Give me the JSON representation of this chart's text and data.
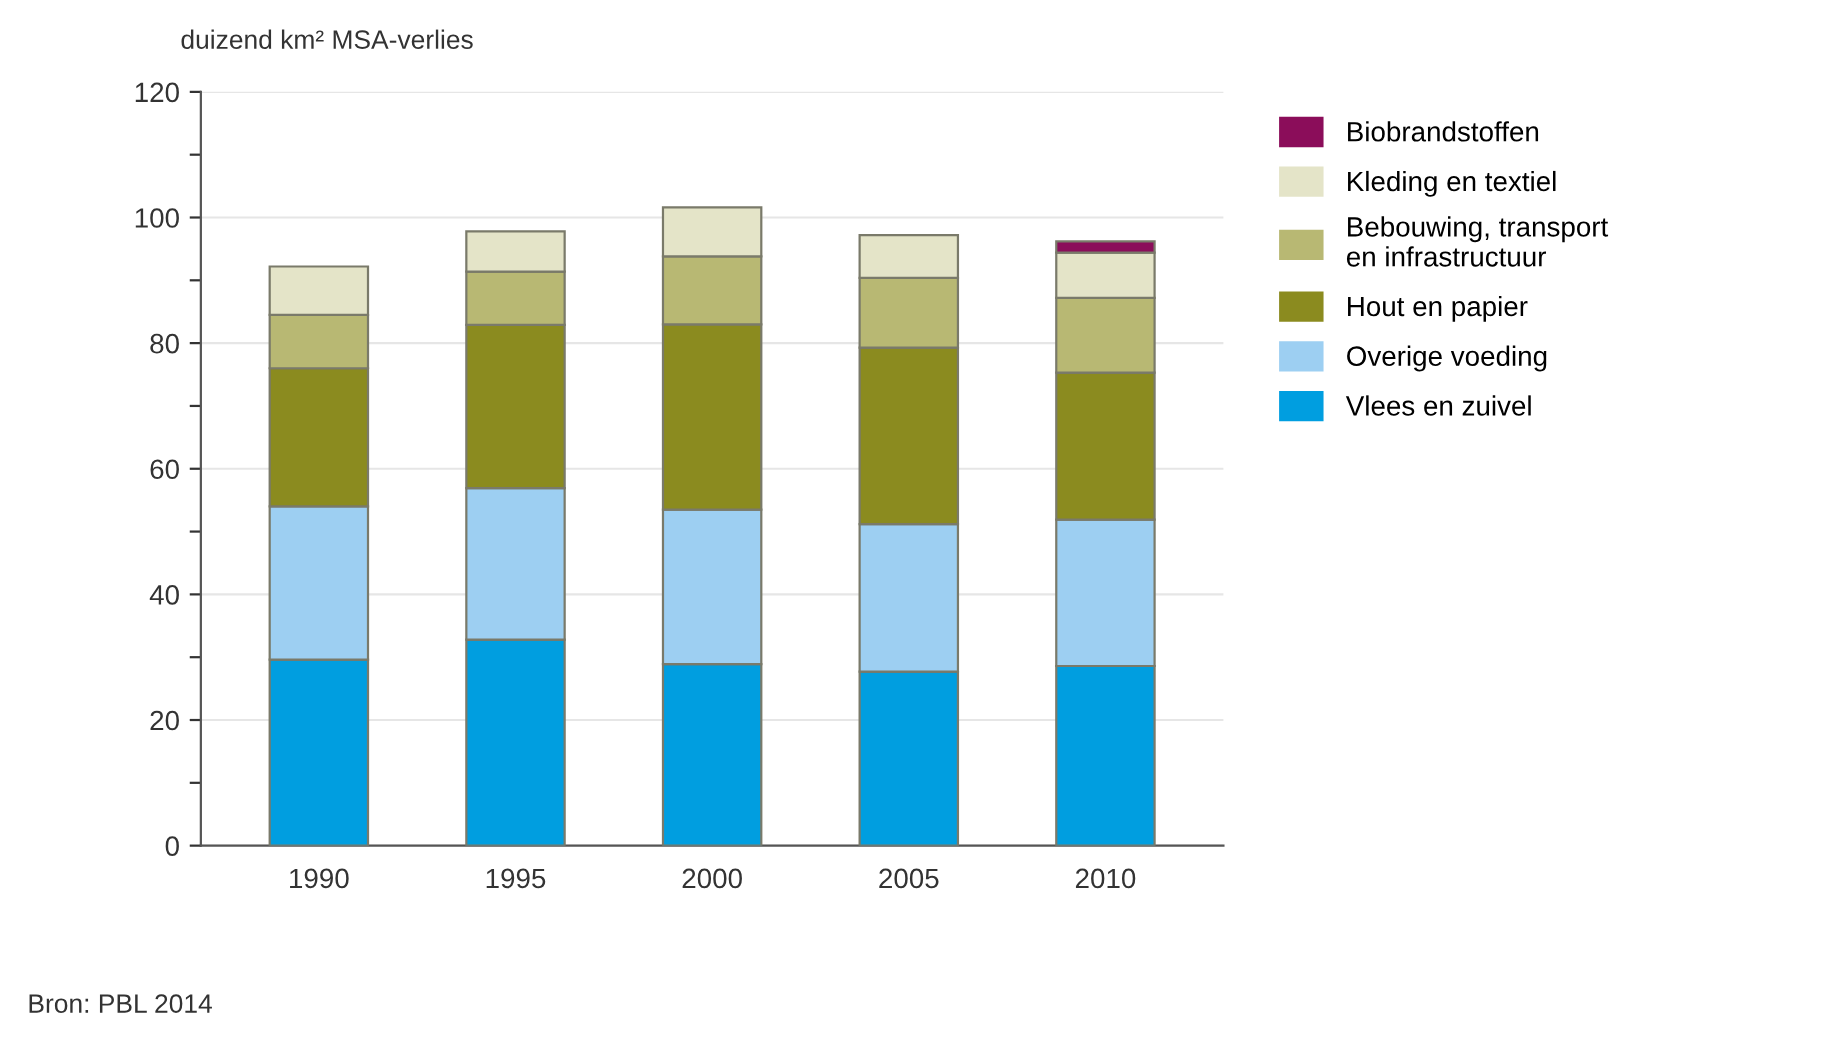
{
  "chart_data": {
    "type": "bar",
    "stacked": true,
    "ylabel": "duizend km² MSA-verlies",
    "categories": [
      "1990",
      "1995",
      "2000",
      "2005",
      "2010"
    ],
    "series": [
      {
        "name": "Vlees en zuivel",
        "color": "#009ee0",
        "values": [
          29.6,
          32.8,
          28.9,
          27.7,
          28.6
        ]
      },
      {
        "name": "Overige voeding",
        "color": "#9dcff2",
        "values": [
          24.4,
          24.1,
          24.6,
          23.5,
          23.3
        ]
      },
      {
        "name": "Hout en papier",
        "color": "#8b8b1f",
        "values": [
          22.0,
          26.0,
          29.5,
          28.1,
          23.4
        ]
      },
      {
        "name": "Bebouwing, transport\nen infrastructuur",
        "color": "#b8b873",
        "values": [
          8.5,
          8.5,
          10.8,
          11.1,
          11.9
        ]
      },
      {
        "name": "Kleding en textiel",
        "color": "#e4e4c8",
        "values": [
          7.7,
          6.4,
          7.8,
          6.8,
          7.2
        ]
      },
      {
        "name": "Biobrandstoffen",
        "color": "#8b0d5a",
        "values": [
          null,
          null,
          null,
          null,
          1.8
        ]
      }
    ],
    "ylim": [
      0,
      120
    ],
    "yticks": [
      0,
      {
        "value": 10,
        "label": null
      },
      20,
      {
        "value": 30,
        "label": null
      },
      40,
      {
        "value": 50,
        "label": null
      },
      60,
      {
        "value": 70,
        "label": null
      },
      80,
      {
        "value": 90,
        "label": null
      },
      100,
      {
        "value": 110,
        "label": null
      },
      120
    ],
    "grid": "y",
    "legend": "right",
    "annotations": [
      "Bron: PBL 2014"
    ]
  }
}
